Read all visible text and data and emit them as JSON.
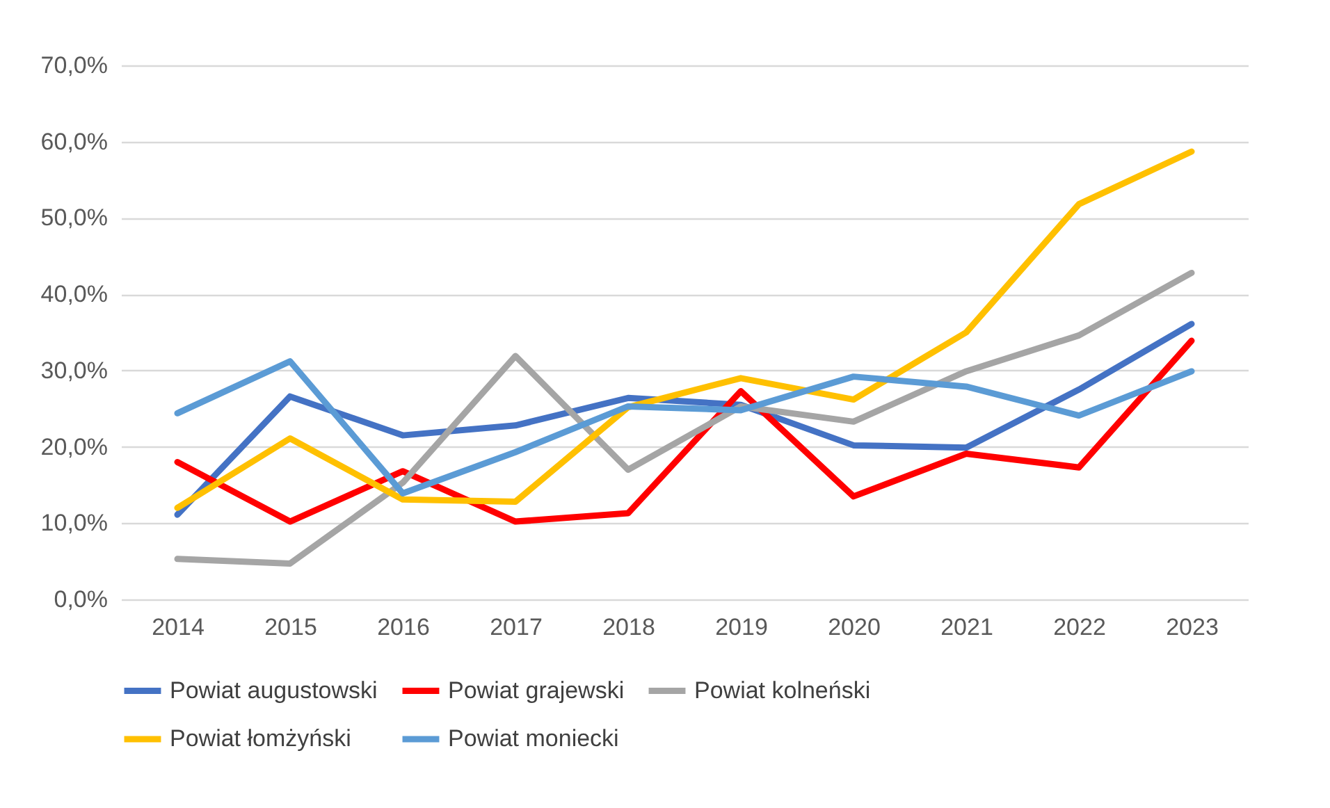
{
  "chart_data": {
    "type": "line",
    "categories": [
      "2014",
      "2015",
      "2016",
      "2017",
      "2018",
      "2019",
      "2020",
      "2021",
      "2022",
      "2023"
    ],
    "ylim": [
      0,
      70
    ],
    "yticks": [
      {
        "value": 0,
        "label": "0,0%"
      },
      {
        "value": 10,
        "label": "10,0%"
      },
      {
        "value": 20,
        "label": "20,0%"
      },
      {
        "value": 30,
        "label": "30,0%"
      },
      {
        "value": 40,
        "label": "40,0%"
      },
      {
        "value": 50,
        "label": "50,0%"
      },
      {
        "value": 60,
        "label": "60,0%"
      },
      {
        "value": 70,
        "label": "70,0%"
      }
    ],
    "grid": "y",
    "legend": "bottom",
    "marker": "none",
    "line_style": "solid",
    "series": [
      {
        "name": "Powiat augustowski",
        "color": "#4472c4",
        "values": [
          11.1,
          26.6,
          21.5,
          22.8,
          26.4,
          25.5,
          20.2,
          19.9,
          27.5,
          36.1
        ]
      },
      {
        "name": "Powiat grajewski",
        "color": "#ff0000",
        "values": [
          18.0,
          10.2,
          16.8,
          10.2,
          11.3,
          27.3,
          13.5,
          19.1,
          17.3,
          33.9
        ]
      },
      {
        "name": "Powiat kolneński",
        "color": "#a5a5a5",
        "values": [
          5.3,
          4.7,
          15.3,
          31.9,
          17.0,
          25.3,
          23.3,
          29.9,
          34.6,
          42.8
        ]
      },
      {
        "name": "Powiat łomżyński",
        "color": "#ffc000",
        "values": [
          12.0,
          21.1,
          13.1,
          12.8,
          25.2,
          29.0,
          26.2,
          35.0,
          51.8,
          58.7
        ]
      },
      {
        "name": "Powiat moniecki",
        "color": "#5b9bd5",
        "values": [
          24.4,
          31.2,
          13.9,
          19.3,
          25.3,
          24.8,
          29.2,
          27.9,
          24.1,
          29.9
        ]
      }
    ]
  }
}
